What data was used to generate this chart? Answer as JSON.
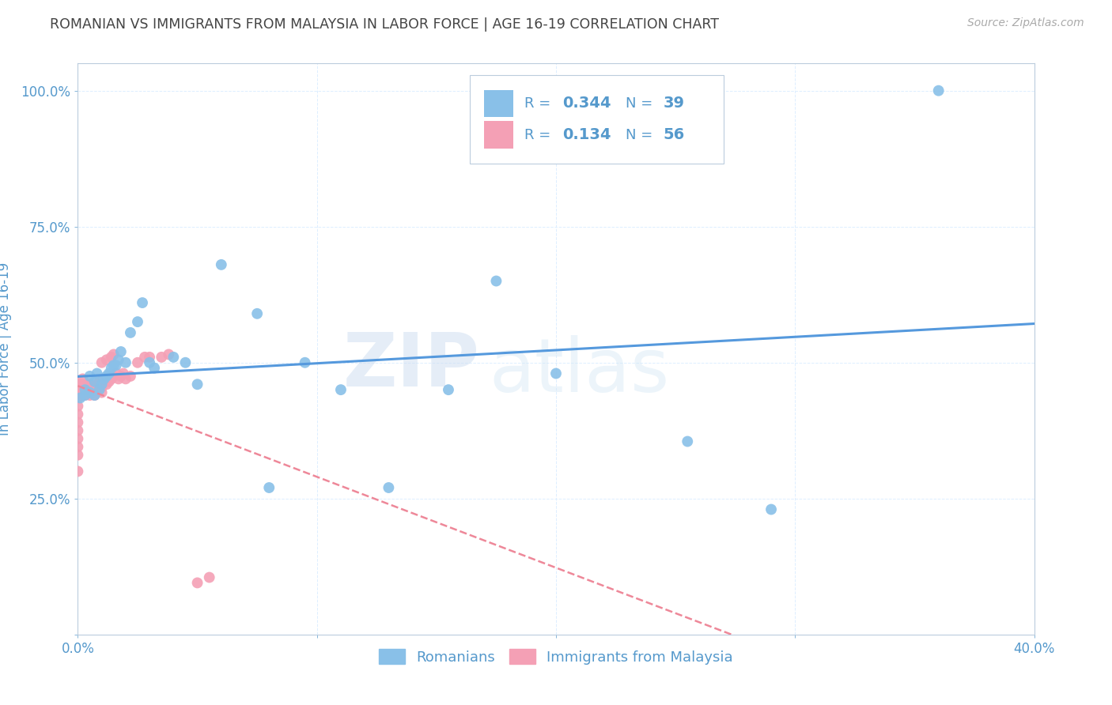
{
  "title": "ROMANIAN VS IMMIGRANTS FROM MALAYSIA IN LABOR FORCE | AGE 16-19 CORRELATION CHART",
  "source": "Source: ZipAtlas.com",
  "ylabel": "In Labor Force | Age 16-19",
  "x_min": 0.0,
  "x_max": 0.4,
  "y_min": 0.0,
  "y_max": 1.05,
  "x_ticks": [
    0.0,
    0.1,
    0.2,
    0.3,
    0.4
  ],
  "x_tick_labels": [
    "0.0%",
    "",
    "",
    "",
    "40.0%"
  ],
  "y_ticks": [
    0.0,
    0.25,
    0.5,
    0.75,
    1.0
  ],
  "y_tick_labels": [
    "",
    "25.0%",
    "50.0%",
    "75.0%",
    "100.0%"
  ],
  "watermark_zip": "ZIP",
  "watermark_atlas": "atlas",
  "blue_color": "#89c0e8",
  "pink_color": "#f4a0b5",
  "blue_line_color": "#5599dd",
  "pink_line_color": "#ee8899",
  "axis_color": "#5599cc",
  "grid_color": "#ddeeff",
  "title_color": "#555555",
  "blue_r": "0.344",
  "blue_n": "39",
  "pink_r": "0.134",
  "pink_n": "56",
  "romanians_x": [
    0.001,
    0.003,
    0.003,
    0.005,
    0.005,
    0.007,
    0.007,
    0.008,
    0.009,
    0.01,
    0.011,
    0.012,
    0.013,
    0.014,
    0.015,
    0.016,
    0.017,
    0.018,
    0.02,
    0.022,
    0.025,
    0.027,
    0.03,
    0.032,
    0.04,
    0.045,
    0.05,
    0.06,
    0.075,
    0.08,
    0.095,
    0.11,
    0.13,
    0.155,
    0.175,
    0.2,
    0.255,
    0.29,
    0.36
  ],
  "romanians_y": [
    0.435,
    0.44,
    0.45,
    0.445,
    0.475,
    0.44,
    0.465,
    0.48,
    0.45,
    0.46,
    0.47,
    0.475,
    0.48,
    0.49,
    0.495,
    0.495,
    0.505,
    0.52,
    0.5,
    0.555,
    0.575,
    0.61,
    0.5,
    0.49,
    0.51,
    0.5,
    0.46,
    0.68,
    0.59,
    0.27,
    0.5,
    0.45,
    0.27,
    0.45,
    0.65,
    0.48,
    0.355,
    0.23,
    1.0
  ],
  "malaysia_x": [
    0.0,
    0.0,
    0.0,
    0.0,
    0.0,
    0.0,
    0.0,
    0.0,
    0.0,
    0.0,
    0.001,
    0.001,
    0.001,
    0.001,
    0.002,
    0.002,
    0.002,
    0.002,
    0.002,
    0.003,
    0.003,
    0.004,
    0.004,
    0.005,
    0.005,
    0.005,
    0.006,
    0.006,
    0.007,
    0.007,
    0.008,
    0.008,
    0.009,
    0.01,
    0.01,
    0.012,
    0.013,
    0.014,
    0.015,
    0.016,
    0.017,
    0.018,
    0.019,
    0.02,
    0.022,
    0.025,
    0.028,
    0.03,
    0.035,
    0.038,
    0.01,
    0.012,
    0.014,
    0.015,
    0.05,
    0.055
  ],
  "malaysia_y": [
    0.3,
    0.33,
    0.345,
    0.36,
    0.375,
    0.39,
    0.405,
    0.42,
    0.435,
    0.45,
    0.44,
    0.45,
    0.455,
    0.46,
    0.44,
    0.45,
    0.455,
    0.46,
    0.47,
    0.44,
    0.45,
    0.455,
    0.46,
    0.44,
    0.45,
    0.46,
    0.445,
    0.455,
    0.44,
    0.455,
    0.45,
    0.46,
    0.465,
    0.445,
    0.455,
    0.46,
    0.465,
    0.47,
    0.475,
    0.48,
    0.47,
    0.475,
    0.48,
    0.47,
    0.475,
    0.5,
    0.51,
    0.51,
    0.51,
    0.515,
    0.5,
    0.505,
    0.51,
    0.515,
    0.095,
    0.105
  ]
}
